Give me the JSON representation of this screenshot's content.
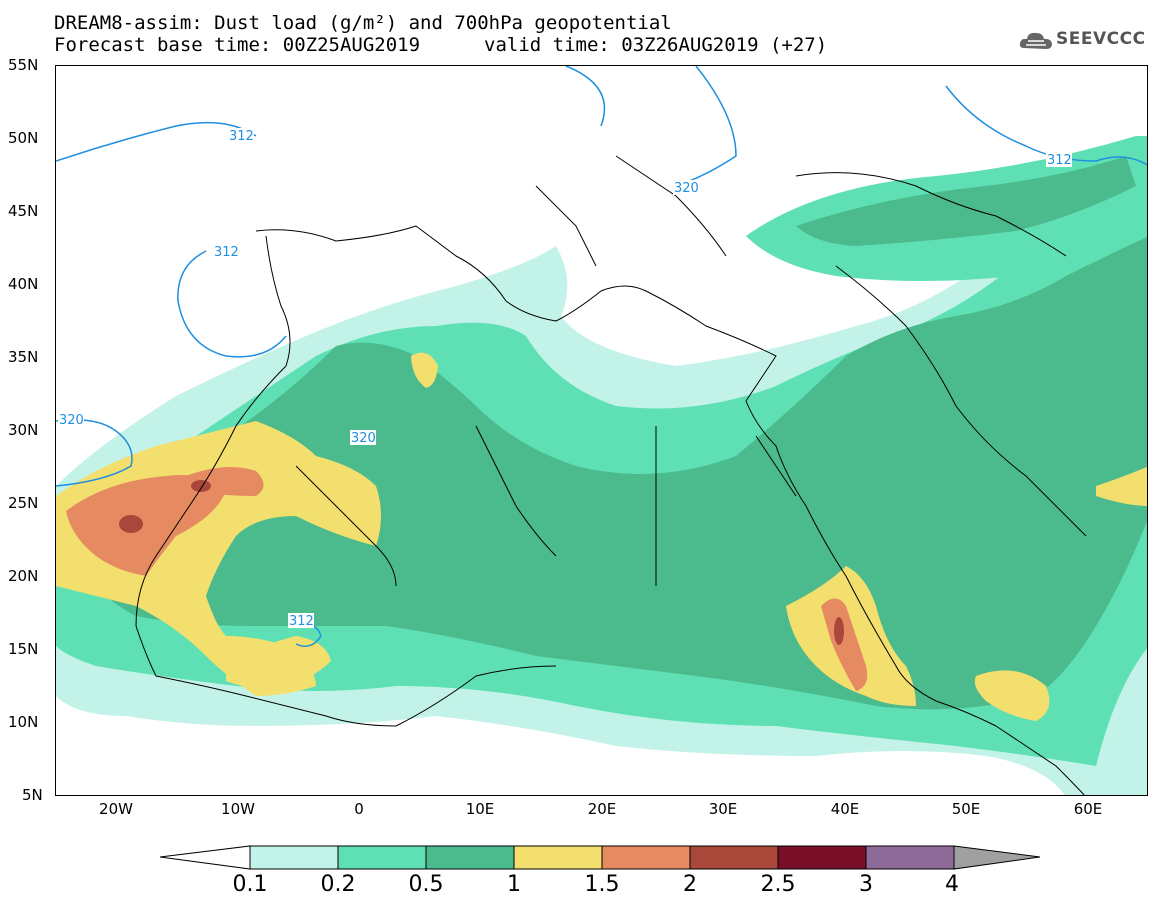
{
  "title_line1": "DREAM8-assim: Dust load (g/m²) and 700hPa geopotential",
  "title_line2": "Forecast base time: 00Z25AUG2019",
  "valid_time": "valid time: 03Z26AUG2019 (+27)",
  "logo": {
    "text": "SEEVCCC",
    "icon": "cloud-icon"
  },
  "lat_labels": [
    "55N",
    "50N",
    "45N",
    "40N",
    "35N",
    "30N",
    "25N",
    "20N",
    "15N",
    "10N",
    "5N"
  ],
  "lon_labels": [
    "20W",
    "10W",
    "0",
    "10E",
    "20E",
    "30E",
    "40E",
    "50E",
    "60E"
  ],
  "contour_labels": [
    "312",
    "312",
    "312",
    "312",
    "320",
    "320",
    "320"
  ],
  "colorbar": {
    "ticks": [
      "0.1",
      "0.2",
      "0.5",
      "1",
      "1.5",
      "2",
      "2.5",
      "3",
      "4"
    ],
    "colors": [
      "#c3f3e8",
      "#5fe0b4",
      "#4bba8d",
      "#f2df6e",
      "#e68a62",
      "#a9473b",
      "#7a0f2a",
      "#8f6b9a"
    ],
    "under_color": "#ffffff",
    "over_color": "#a0a0a0"
  },
  "contour_color": "#1f8fe0"
}
